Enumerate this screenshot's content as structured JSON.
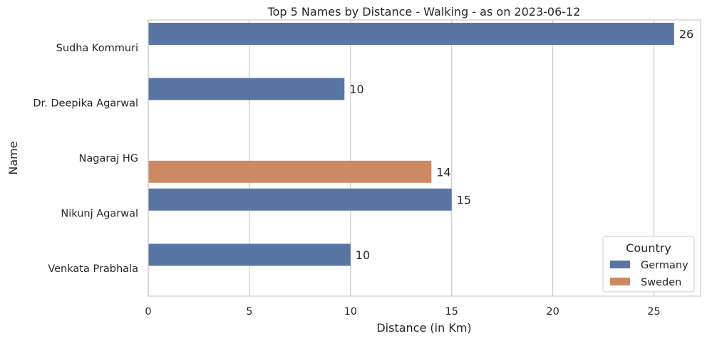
{
  "chart_data": {
    "type": "bar",
    "orientation": "horizontal",
    "title": "Top 5 Names by Distance - Walking - as on 2023-06-12",
    "xlabel": "Distance (in Km)",
    "ylabel": "Name",
    "xlim": [
      0,
      27.3
    ],
    "xticks": [
      0,
      5,
      10,
      15,
      20,
      25
    ],
    "grid": "vertical",
    "categories": [
      "Sudha Kommuri",
      "Dr. Deepika Agarwal",
      "Nagaraj HG",
      "Nikunj Agarwal",
      "Venkata Prabhala"
    ],
    "series": [
      {
        "name": "Germany",
        "color": "#5975a4",
        "values": [
          26,
          9.7,
          null,
          15,
          10
        ]
      },
      {
        "name": "Sweden",
        "color": "#cc8963",
        "values": [
          null,
          null,
          14,
          null,
          null
        ]
      }
    ],
    "data_labels": [
      "26",
      "10",
      "14",
      "15",
      "10"
    ],
    "legend": {
      "title": "Country",
      "placement": "lower-right"
    }
  }
}
